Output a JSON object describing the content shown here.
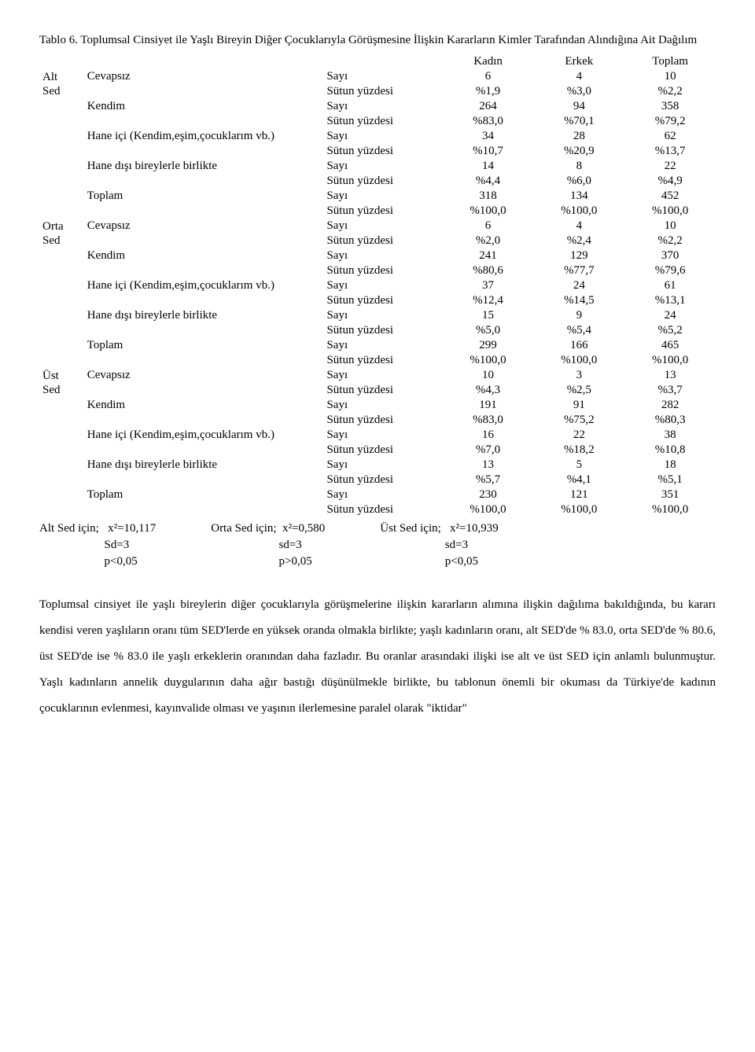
{
  "title": "Tablo 6. Toplumsal Cinsiyet ile Yaşlı Bireyin Diğer Çocuklarıyla Görüşmesine İlişkin Kararların Kimler Tarafından Alındığına Ait Dağılım",
  "headers": {
    "h1": "Kadın",
    "h2": "Erkek",
    "h3": "Toplam"
  },
  "metricLabels": {
    "count": "Sayı",
    "pct": "Sütun yüzdesi"
  },
  "sedLabels": {
    "alt": "Alt Sed",
    "orta": "Orta Sed",
    "ust": "Üst Sed"
  },
  "rowLabels": {
    "cevapsiz": "Cevapsız",
    "kendim": "Kendim",
    "haneici": "Hane içi (Kendim,eşim,çocuklarım vb.)",
    "hanedisi": "Hane dışı bireylerle birlikte",
    "toplam": "Toplam"
  },
  "data": {
    "alt": {
      "cevapsiz": {
        "count": [
          "6",
          "4",
          "10"
        ],
        "pct": [
          "%1,9",
          "%3,0",
          "%2,2"
        ]
      },
      "kendim": {
        "count": [
          "264",
          "94",
          "358"
        ],
        "pct": [
          "%83,0",
          "%70,1",
          "%79,2"
        ]
      },
      "haneici": {
        "count": [
          "34",
          "28",
          "62"
        ],
        "pct": [
          "%10,7",
          "%20,9",
          "%13,7"
        ]
      },
      "hanedisi": {
        "count": [
          "14",
          "8",
          "22"
        ],
        "pct": [
          "%4,4",
          "%6,0",
          "%4,9"
        ]
      },
      "toplam": {
        "count": [
          "318",
          "134",
          "452"
        ],
        "pct": [
          "%100,0",
          "%100,0",
          "%100,0"
        ]
      }
    },
    "orta": {
      "cevapsiz": {
        "count": [
          "6",
          "4",
          "10"
        ],
        "pct": [
          "%2,0",
          "%2,4",
          "%2,2"
        ]
      },
      "kendim": {
        "count": [
          "241",
          "129",
          "370"
        ],
        "pct": [
          "%80,6",
          "%77,7",
          "%79,6"
        ]
      },
      "haneici": {
        "count": [
          "37",
          "24",
          "61"
        ],
        "pct": [
          "%12,4",
          "%14,5",
          "%13,1"
        ]
      },
      "hanedisi": {
        "count": [
          "15",
          "9",
          "24"
        ],
        "pct": [
          "%5,0",
          "%5,4",
          "%5,2"
        ]
      },
      "toplam": {
        "count": [
          "299",
          "166",
          "465"
        ],
        "pct": [
          "%100,0",
          "%100,0",
          "%100,0"
        ]
      }
    },
    "ust": {
      "cevapsiz": {
        "count": [
          "10",
          "3",
          "13"
        ],
        "pct": [
          "%4,3",
          "%2,5",
          "%3,7"
        ]
      },
      "kendim": {
        "count": [
          "191",
          "91",
          "282"
        ],
        "pct": [
          "%83,0",
          "%75,2",
          "%80,3"
        ]
      },
      "haneici": {
        "count": [
          "16",
          "22",
          "38"
        ],
        "pct": [
          "%7,0",
          "%18,2",
          "%10,8"
        ]
      },
      "hanedisi": {
        "count": [
          "13",
          "5",
          "18"
        ],
        "pct": [
          "%5,7",
          "%4,1",
          "%5,1"
        ]
      },
      "toplam": {
        "count": [
          "230",
          "121",
          "351"
        ],
        "pct": [
          "%100,0",
          "%100,0",
          "%100,0"
        ]
      }
    }
  },
  "stats": {
    "alt": {
      "title": "Alt Sed için;",
      "x2": "x²=10,117",
      "sd": "Sd=3",
      "p": "p<0,05"
    },
    "orta": {
      "title": "Orta Sed için;",
      "x2": "x²=0,580",
      "sd": "sd=3",
      "p": "p>0,05"
    },
    "ust": {
      "title": "Üst Sed için;",
      "x2": "x²=10,939",
      "sd": "sd=3",
      "p": "p<0,05"
    }
  },
  "paragraph": "Toplumsal cinsiyet ile yaşlı bireylerin diğer çocuklarıyla görüşmelerine ilişkin kararların alımına ilişkin dağılıma bakıldığında, bu kararı kendisi veren yaşlıların oranı tüm SED'lerde en yüksek oranda olmakla birlikte; yaşlı kadınların oranı, alt SED'de % 83.0, orta SED'de % 80.6, üst SED'de ise % 83.0 ile yaşlı erkeklerin oranından daha fazladır. Bu oranlar arasındaki ilişki ise alt ve üst SED için anlamlı bulunmuştur. Yaşlı kadınların annelik duygularının daha ağır bastığı düşünülmekle birlikte, bu tablonun önemli bir okuması da Türkiye'de kadının çocuklarının evlenmesi, kayınvalide olması ve yaşının ilerlemesine paralel olarak \"iktidar\""
}
